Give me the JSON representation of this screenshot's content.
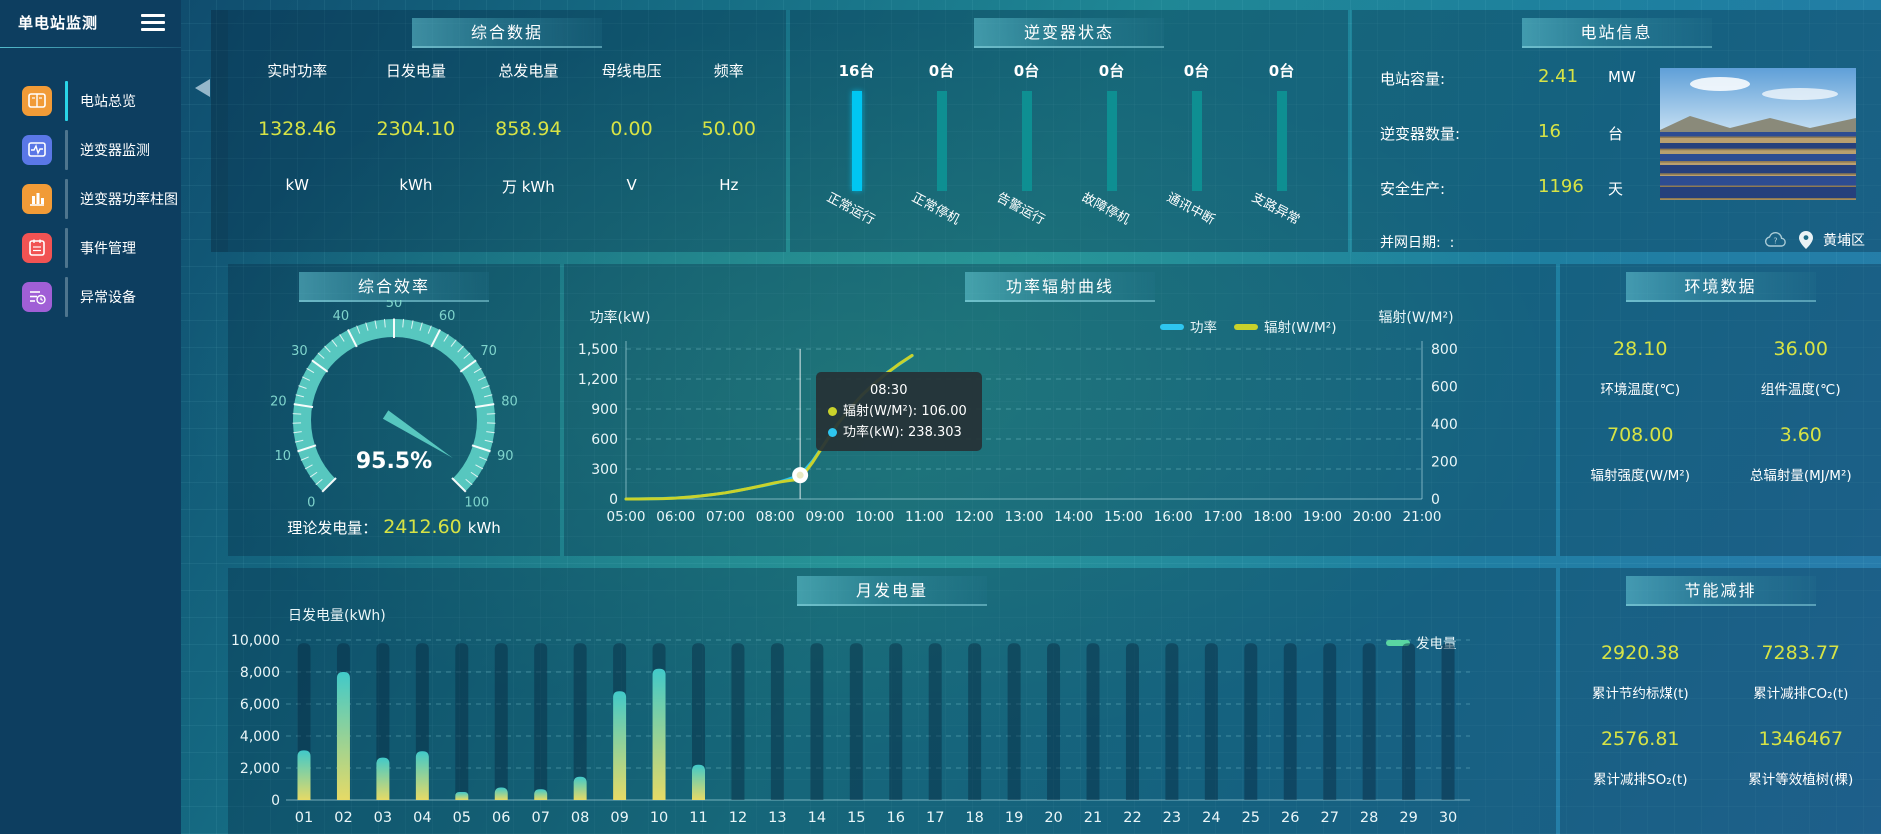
{
  "app": {
    "title": "单电站监测"
  },
  "sidebar": {
    "items": [
      {
        "label": "电站总览",
        "icon": "book-icon",
        "color": "#f19b37",
        "active": true
      },
      {
        "label": "逆变器监测",
        "icon": "waveform-icon",
        "color": "#5a77e6",
        "active": false
      },
      {
        "label": "逆变器功率柱图",
        "icon": "bar-chart-icon",
        "color": "#f19b37",
        "active": false
      },
      {
        "label": "事件管理",
        "icon": "notebook-icon",
        "color": "#f15353",
        "active": false
      },
      {
        "label": "异常设备",
        "icon": "device-list-icon",
        "color": "#a05fd6",
        "active": false
      }
    ]
  },
  "panels": {
    "overview": {
      "title": "综合数据",
      "metrics": [
        {
          "label": "实时功率",
          "value": "1328.46",
          "unit": "kW"
        },
        {
          "label": "日发电量",
          "value": "2304.10",
          "unit": "kWh"
        },
        {
          "label": "总发电量",
          "value": "858.94",
          "unit": "万 kWh"
        },
        {
          "label": "母线电压",
          "value": "0.00",
          "unit": "V"
        },
        {
          "label": "频率",
          "value": "50.00",
          "unit": "Hz"
        }
      ]
    },
    "inverter_status": {
      "title": "逆变器状态",
      "items": [
        {
          "count": "16台",
          "label": "正常运行",
          "highlight": true
        },
        {
          "count": "0台",
          "label": "正常停机",
          "highlight": false
        },
        {
          "count": "0台",
          "label": "告警运行",
          "highlight": false
        },
        {
          "count": "0台",
          "label": "故障停机",
          "highlight": false
        },
        {
          "count": "0台",
          "label": "通讯中断",
          "highlight": false
        },
        {
          "count": "0台",
          "label": "支路异常",
          "highlight": false
        }
      ]
    },
    "station_info": {
      "title": "电站信息",
      "rows": [
        {
          "label": "电站容量:",
          "value": "2.41",
          "unit": "MW"
        },
        {
          "label": "逆变器数量:",
          "value": "16",
          "unit": "台"
        },
        {
          "label": "安全生产:",
          "value": "1196",
          "unit": "天"
        }
      ],
      "grid_date": {
        "label": "并网日期:",
        "value": ":"
      },
      "location": "黄埔区"
    },
    "efficiency": {
      "title": "综合效率",
      "bottom": {
        "label": "理论发电量：",
        "value": "2412.60",
        "unit": "kWh"
      }
    },
    "environment": {
      "title": "环境数据",
      "cells": [
        {
          "value": "28.10",
          "label": "环境温度(℃)"
        },
        {
          "value": "36.00",
          "label": "组件温度(℃)"
        },
        {
          "value": "708.00",
          "label": "辐射强度(W/M²)"
        },
        {
          "value": "3.60",
          "label": "总辐射量(MJ/M²)"
        }
      ]
    },
    "savings": {
      "title": "节能减排",
      "cells": [
        {
          "value": "2920.38",
          "label": "累计节约标煤(t)"
        },
        {
          "value": "7283.77",
          "label": "累计减排CO₂(t)"
        },
        {
          "value": "2576.81",
          "label": "累计减排SO₂(t)"
        },
        {
          "value": "1346467",
          "label": "累计等效植树(棵)"
        }
      ]
    }
  },
  "chart_data": [
    {
      "id": "efficiency_gauge",
      "type": "gauge",
      "title": "综合效率",
      "value": 95.5,
      "value_label": "95.5%",
      "min": 0,
      "max": 100,
      "tick_labels": [
        0,
        10,
        20,
        30,
        40,
        50,
        60,
        70,
        80,
        90,
        100
      ],
      "band_color": "#57c7bf",
      "label_color": "#7fd4cc"
    },
    {
      "id": "power_radiation",
      "type": "line",
      "title": "功率辐射曲线",
      "ylabel_left": "功率(kW)",
      "ylabel_right": "辐射(W/M²)",
      "ylim_left": [
        0,
        1500
      ],
      "yticks_left": [
        "0",
        "300",
        "600",
        "900",
        "1,200",
        "1,500"
      ],
      "ylim_right": [
        0,
        800
      ],
      "yticks_right": [
        "0",
        "200",
        "400",
        "600",
        "800"
      ],
      "xticks": [
        "05:00",
        "06:00",
        "07:00",
        "08:00",
        "09:00",
        "10:00",
        "11:00",
        "12:00",
        "13:00",
        "14:00",
        "15:00",
        "16:00",
        "17:00",
        "18:00",
        "19:00",
        "20:00",
        "21:00"
      ],
      "x_range_hours": [
        5,
        21
      ],
      "grid": "dashed horizontal",
      "legend_position": "top",
      "legend": [
        {
          "name": "功率",
          "color": "#2ec6f0"
        },
        {
          "name": "辐射(W/M²)",
          "color": "#c9d22b"
        }
      ],
      "series": [
        {
          "name": "功率",
          "axis": "left",
          "color": "#2ec6f0",
          "points": [
            [
              5,
              0
            ],
            [
              5.25,
              1
            ],
            [
              5.5,
              2
            ],
            [
              5.75,
              5
            ],
            [
              6,
              10
            ],
            [
              6.25,
              18
            ],
            [
              6.5,
              30
            ],
            [
              6.75,
              45
            ],
            [
              7,
              62
            ],
            [
              7.25,
              85
            ],
            [
              7.5,
              108
            ],
            [
              7.75,
              132
            ],
            [
              8,
              158
            ],
            [
              8.25,
              196
            ],
            [
              8.5,
              238.303
            ],
            [
              8.75,
              380
            ],
            [
              9,
              560
            ],
            [
              9.25,
              745
            ],
            [
              9.5,
              905
            ],
            [
              9.75,
              1040
            ],
            [
              10,
              1160
            ],
            [
              10.25,
              1265
            ],
            [
              10.5,
              1350
            ],
            [
              10.75,
              1432
            ]
          ]
        },
        {
          "name": "辐射(W/M²)",
          "axis": "right",
          "color": "#c9d22b",
          "points": [
            [
              5,
              0
            ],
            [
              5.25,
              0
            ],
            [
              5.5,
              1
            ],
            [
              5.75,
              2
            ],
            [
              6,
              5
            ],
            [
              6.25,
              10
            ],
            [
              6.5,
              16
            ],
            [
              6.75,
              24
            ],
            [
              7,
              33
            ],
            [
              7.25,
              45
            ],
            [
              7.5,
              58
            ],
            [
              7.75,
              72
            ],
            [
              8,
              87
            ],
            [
              8.25,
              97
            ],
            [
              8.5,
              106
            ],
            [
              8.75,
              196
            ],
            [
              9,
              298
            ],
            [
              9.25,
              398
            ],
            [
              9.5,
              482
            ],
            [
              9.75,
              556
            ],
            [
              10,
              618
            ],
            [
              10.25,
              672
            ],
            [
              10.5,
              722
            ],
            [
              10.75,
              766
            ]
          ]
        }
      ],
      "tooltip": {
        "time": "08:30",
        "x_hour": 8.5,
        "entries": [
          {
            "color": "#c9d22b",
            "text": "辐射(W/M²): 106.00"
          },
          {
            "color": "#2ec6f0",
            "text": "功率(kW): 238.303"
          }
        ],
        "marker_value_left": 238.303
      }
    },
    {
      "id": "monthly_generation",
      "type": "bar",
      "title": "月发电量",
      "ylabel": "日发电量(kWh)",
      "ylim": [
        0,
        10000
      ],
      "yticks": [
        "0",
        "2,000",
        "4,000",
        "6,000",
        "8,000",
        "10,000"
      ],
      "categories": [
        "01",
        "02",
        "03",
        "04",
        "05",
        "06",
        "07",
        "08",
        "09",
        "10",
        "11",
        "12",
        "13",
        "14",
        "15",
        "16",
        "17",
        "18",
        "19",
        "20",
        "21",
        "22",
        "23",
        "24",
        "25",
        "26",
        "27",
        "28",
        "29",
        "30"
      ],
      "values": [
        3100,
        8000,
        2650,
        3050,
        500,
        780,
        670,
        1450,
        6800,
        8200,
        2200,
        0,
        0,
        0,
        0,
        0,
        0,
        0,
        0,
        0,
        0,
        0,
        0,
        0,
        0,
        0,
        0,
        0,
        0,
        0
      ],
      "legend": [
        {
          "name": "发电量",
          "color": "#5ad6a2"
        }
      ],
      "legend_position": "top-right",
      "grid": "dashed horizontal",
      "bar_gradient_bottom": "#e6da66",
      "bar_gradient_top": "#41c9c9"
    }
  ]
}
